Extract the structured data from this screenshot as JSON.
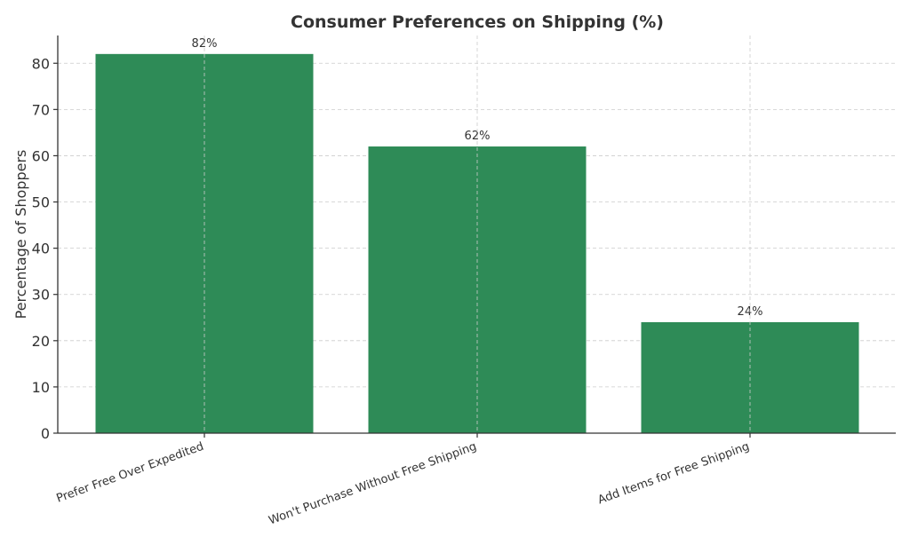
{
  "chart_data": {
    "type": "bar",
    "title": "Consumer Preferences on Shipping (%)",
    "xlabel": "",
    "ylabel": "Percentage of Shoppers",
    "categories": [
      "Prefer Free Over Expedited",
      "Won't Purchase Without Free Shipping",
      "Add Items for Free Shipping"
    ],
    "values": [
      82,
      62,
      24
    ],
    "data_labels": [
      "82%",
      "62%",
      "24%"
    ],
    "yticks": [
      0,
      10,
      20,
      30,
      40,
      50,
      60,
      70,
      80
    ],
    "ylim": [
      0,
      86
    ],
    "grid": true,
    "bar_color": "#2e8b57",
    "x_tick_rotation": 20
  }
}
